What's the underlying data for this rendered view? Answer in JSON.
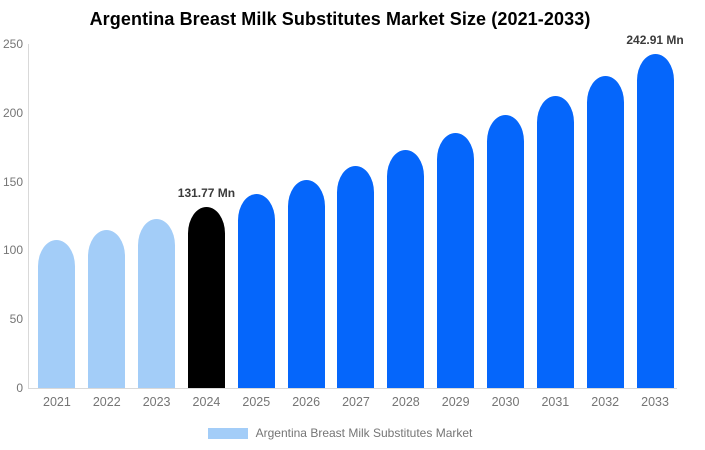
{
  "title": "Argentina Breast Milk Substitutes Market Size (2021-2033)",
  "legend": {
    "label": "Argentina Breast Milk Substitutes Market"
  },
  "colors": {
    "background": "#ffffff",
    "title_text": "#000000",
    "axis_line": "#d9d9d9",
    "tick_text": "#757575",
    "annotation_text": "#3b3b3b",
    "bar_light_blue": "#a3cdf8",
    "bar_blue": "#0566fb",
    "bar_black": "#000000"
  },
  "chart_data": {
    "type": "bar",
    "title": "Argentina Breast Milk Substitutes Market Size (2021-2033)",
    "unit": "Mn",
    "categories": [
      "2021",
      "2022",
      "2023",
      "2024",
      "2025",
      "2026",
      "2027",
      "2028",
      "2029",
      "2030",
      "2031",
      "2032",
      "2033"
    ],
    "values": [
      107.5,
      115.0,
      123.1,
      131.77,
      141.0,
      151.0,
      161.6,
      172.9,
      185.1,
      198.1,
      212.0,
      226.9,
      242.91
    ],
    "bar_colors": [
      "#a3cdf8",
      "#a3cdf8",
      "#a3cdf8",
      "#000000",
      "#0566fb",
      "#0566fb",
      "#0566fb",
      "#0566fb",
      "#0566fb",
      "#0566fb",
      "#0566fb",
      "#0566fb",
      "#0566fb"
    ],
    "ylim": [
      0,
      250
    ],
    "yticks": [
      0,
      50,
      100,
      150,
      200,
      250
    ],
    "grid": false,
    "xlabel": "",
    "ylabel": "",
    "legend_position": "bottom",
    "legend_label": "Argentina Breast Milk Substitutes Market",
    "annotations": [
      {
        "category": "2024",
        "text": "131.77 Mn"
      },
      {
        "category": "2033",
        "text": "242.91 Mn"
      }
    ]
  }
}
